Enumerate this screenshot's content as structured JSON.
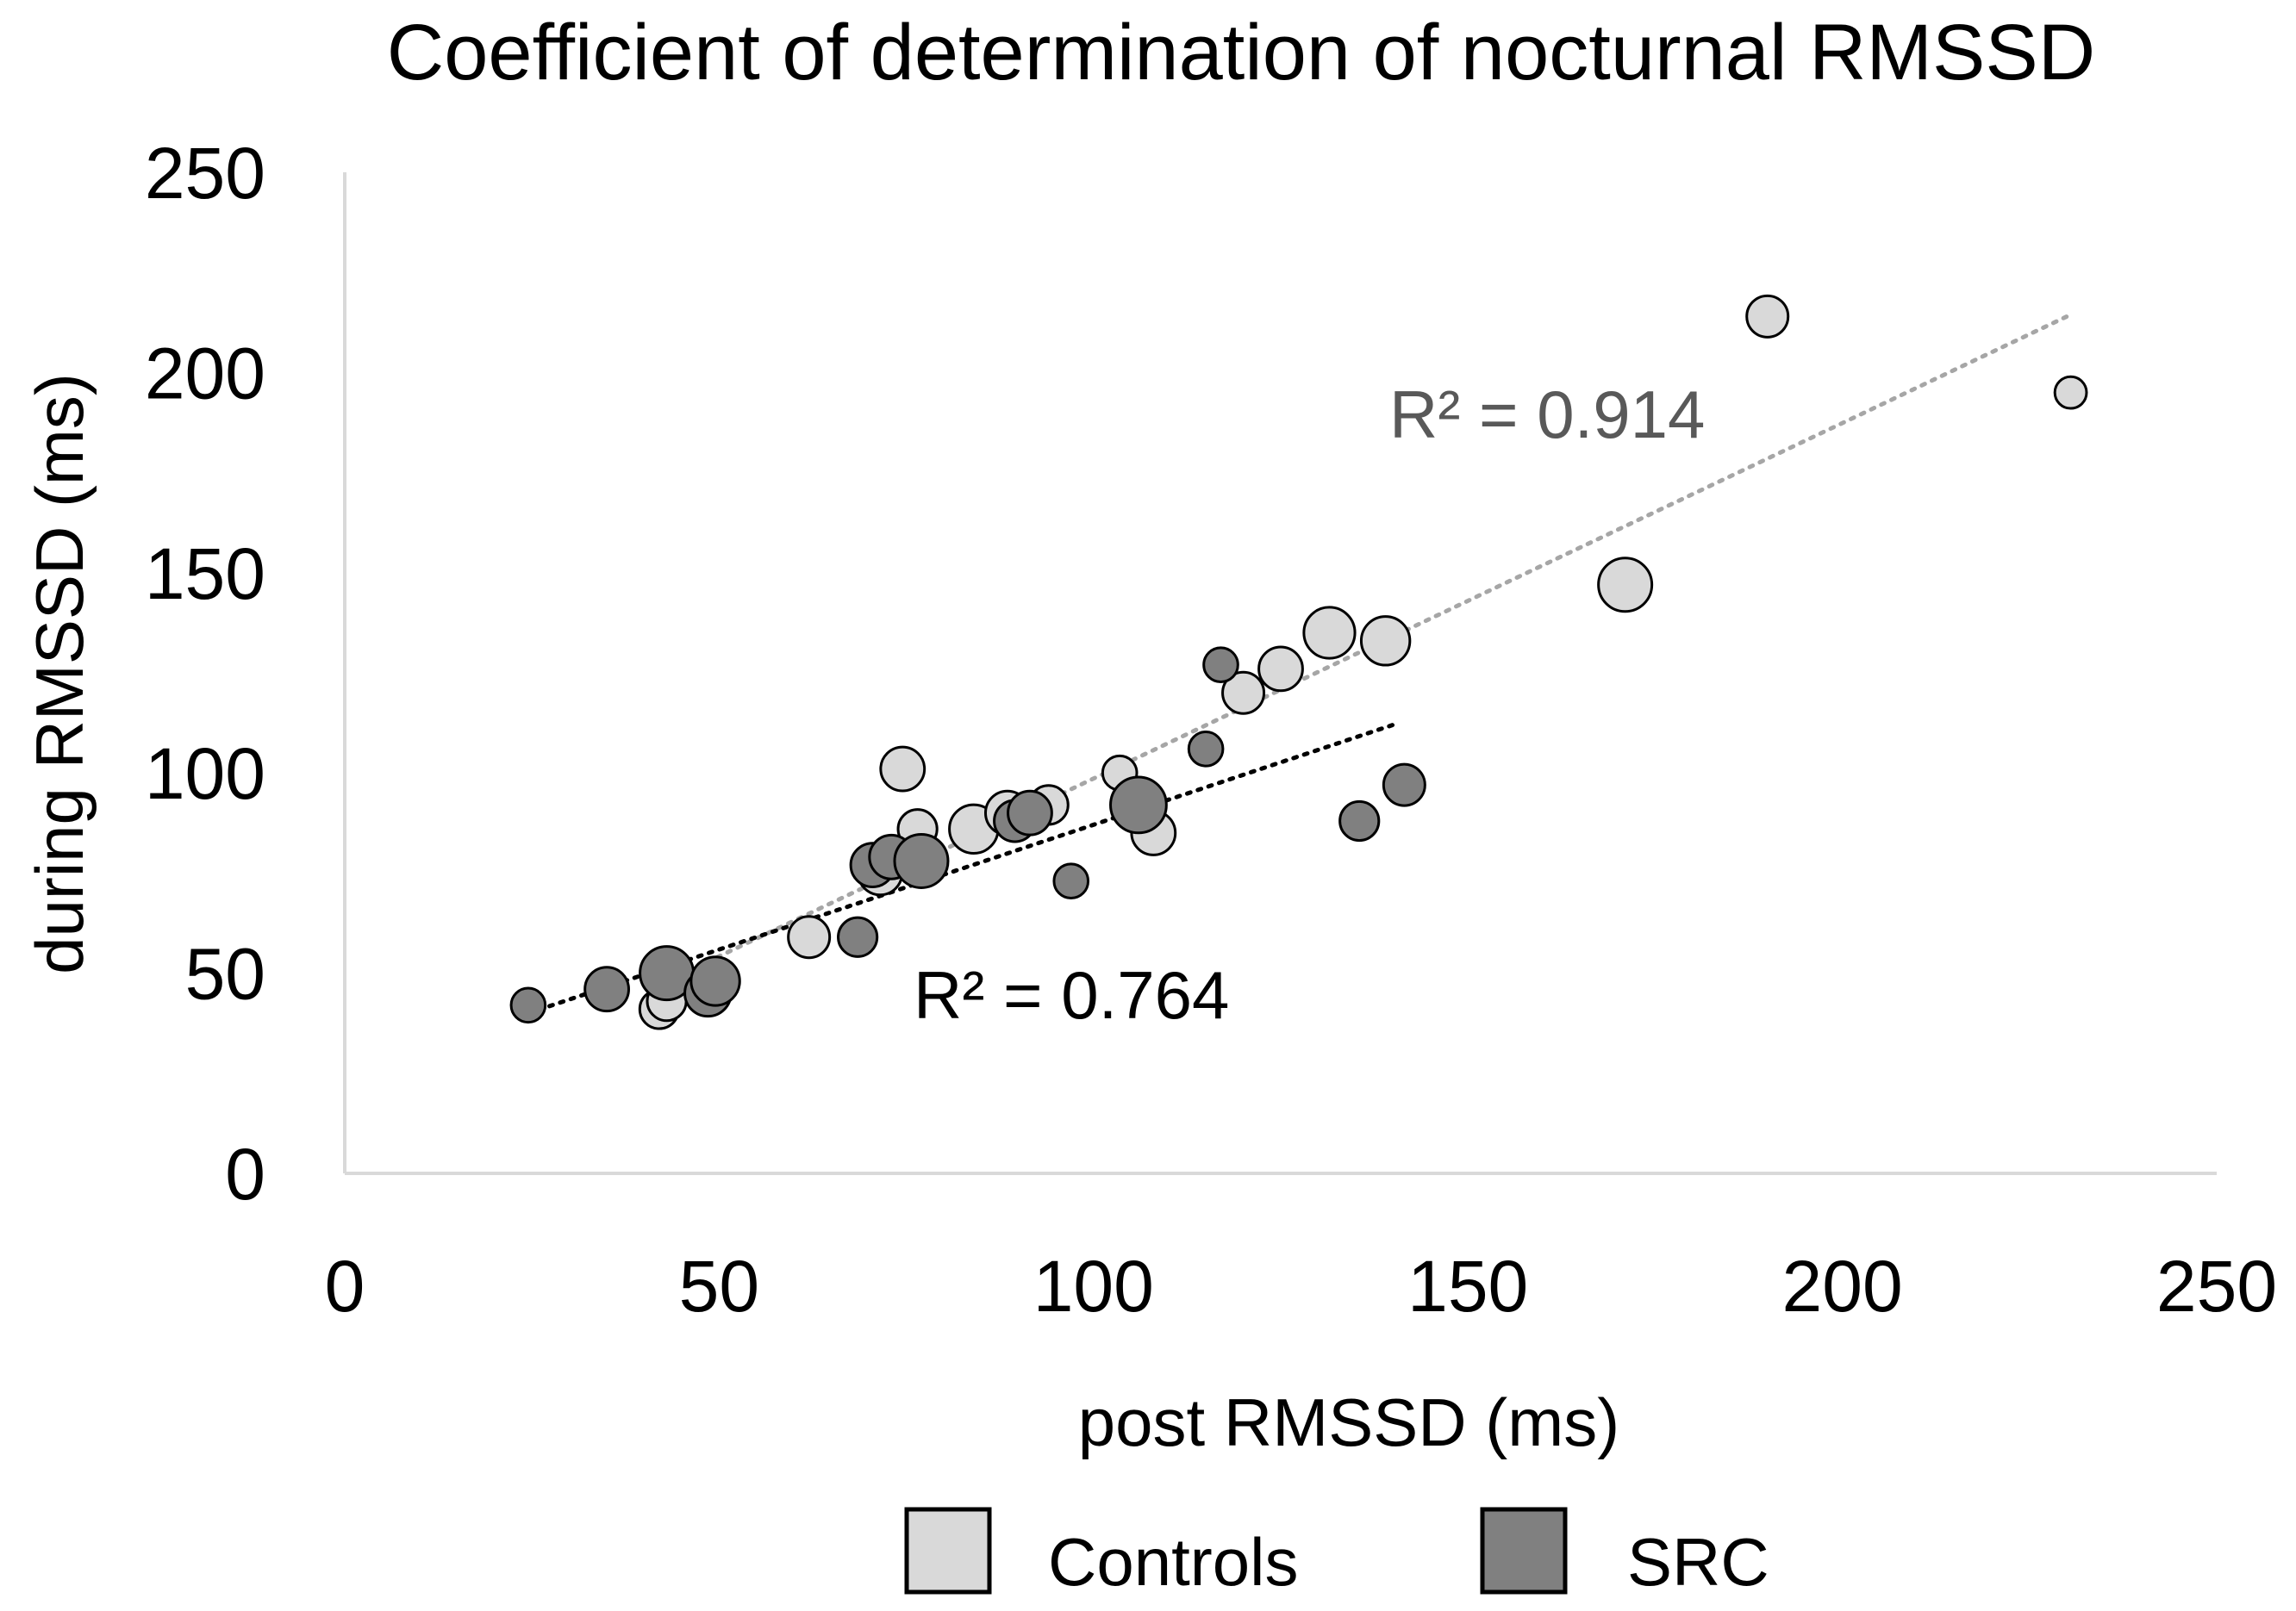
{
  "chart_data": {
    "type": "scatter",
    "title": "Coefficient of determination of nocturnal RMSSD",
    "xlabel": "post RMSSD (ms)",
    "ylabel": "during RMSSD (ms)",
    "xlim": [
      0,
      250
    ],
    "ylim": [
      0,
      250
    ],
    "x_ticks": [
      "0",
      "50",
      "100",
      "150",
      "200",
      "250"
    ],
    "y_ticks": [
      "0",
      "50",
      "100",
      "150",
      "200",
      "250"
    ],
    "grid": false,
    "legend_position": "bottom",
    "series": [
      {
        "name": "Controls",
        "color": "#d9d9d9",
        "trendline_color": "#a6a6a6",
        "r_squared_label": "R² = 0.914",
        "trendline": {
          "x_start": 43,
          "y_start": 48,
          "x_end": 230,
          "y_end": 214
        },
        "points": [
          {
            "x": 42,
            "y": 41,
            "size": 0.45
          },
          {
            "x": 43,
            "y": 43,
            "size": 0.45
          },
          {
            "x": 62,
            "y": 59,
            "size": 0.5
          },
          {
            "x": 71.5,
            "y": 75,
            "size": 0.55
          },
          {
            "x": 74.5,
            "y": 101,
            "size": 0.55
          },
          {
            "x": 76.5,
            "y": 86,
            "size": 0.45
          },
          {
            "x": 84,
            "y": 86,
            "size": 0.65
          },
          {
            "x": 88.5,
            "y": 90,
            "size": 0.55
          },
          {
            "x": 94,
            "y": 92,
            "size": 0.45
          },
          {
            "x": 103.5,
            "y": 100,
            "size": 0.35
          },
          {
            "x": 108,
            "y": 85,
            "size": 0.55
          },
          {
            "x": 120,
            "y": 120,
            "size": 0.5
          },
          {
            "x": 125,
            "y": 126,
            "size": 0.55
          },
          {
            "x": 131.5,
            "y": 135,
            "size": 0.7
          },
          {
            "x": 139,
            "y": 133,
            "size": 0.65
          },
          {
            "x": 171,
            "y": 147,
            "size": 0.75
          },
          {
            "x": 190,
            "y": 214,
            "size": 0.5
          },
          {
            "x": 230.5,
            "y": 195,
            "size": 0.3
          }
        ]
      },
      {
        "name": "SRC",
        "color": "#808080",
        "trendline_color": "#000000",
        "r_squared_label": "R² = 0.764",
        "trendline": {
          "x_start": 24.5,
          "y_start": 40,
          "x_end": 140,
          "y_end": 112
        },
        "points": [
          {
            "x": 24.5,
            "y": 42,
            "size": 0.35
          },
          {
            "x": 35,
            "y": 46,
            "size": 0.55
          },
          {
            "x": 43,
            "y": 50,
            "size": 0.75
          },
          {
            "x": 48.5,
            "y": 45,
            "size": 0.6
          },
          {
            "x": 49.5,
            "y": 48,
            "size": 0.65
          },
          {
            "x": 68.5,
            "y": 59,
            "size": 0.45
          },
          {
            "x": 70.5,
            "y": 77,
            "size": 0.55
          },
          {
            "x": 73,
            "y": 79,
            "size": 0.55
          },
          {
            "x": 77,
            "y": 78,
            "size": 0.75
          },
          {
            "x": 89.5,
            "y": 88,
            "size": 0.5
          },
          {
            "x": 91.5,
            "y": 90,
            "size": 0.55
          },
          {
            "x": 97,
            "y": 73,
            "size": 0.35
          },
          {
            "x": 106,
            "y": 92,
            "size": 0.8
          },
          {
            "x": 115,
            "y": 106,
            "size": 0.35
          },
          {
            "x": 117,
            "y": 127,
            "size": 0.35
          },
          {
            "x": 135.5,
            "y": 88,
            "size": 0.45
          },
          {
            "x": 141.5,
            "y": 97,
            "size": 0.5
          }
        ]
      }
    ]
  }
}
